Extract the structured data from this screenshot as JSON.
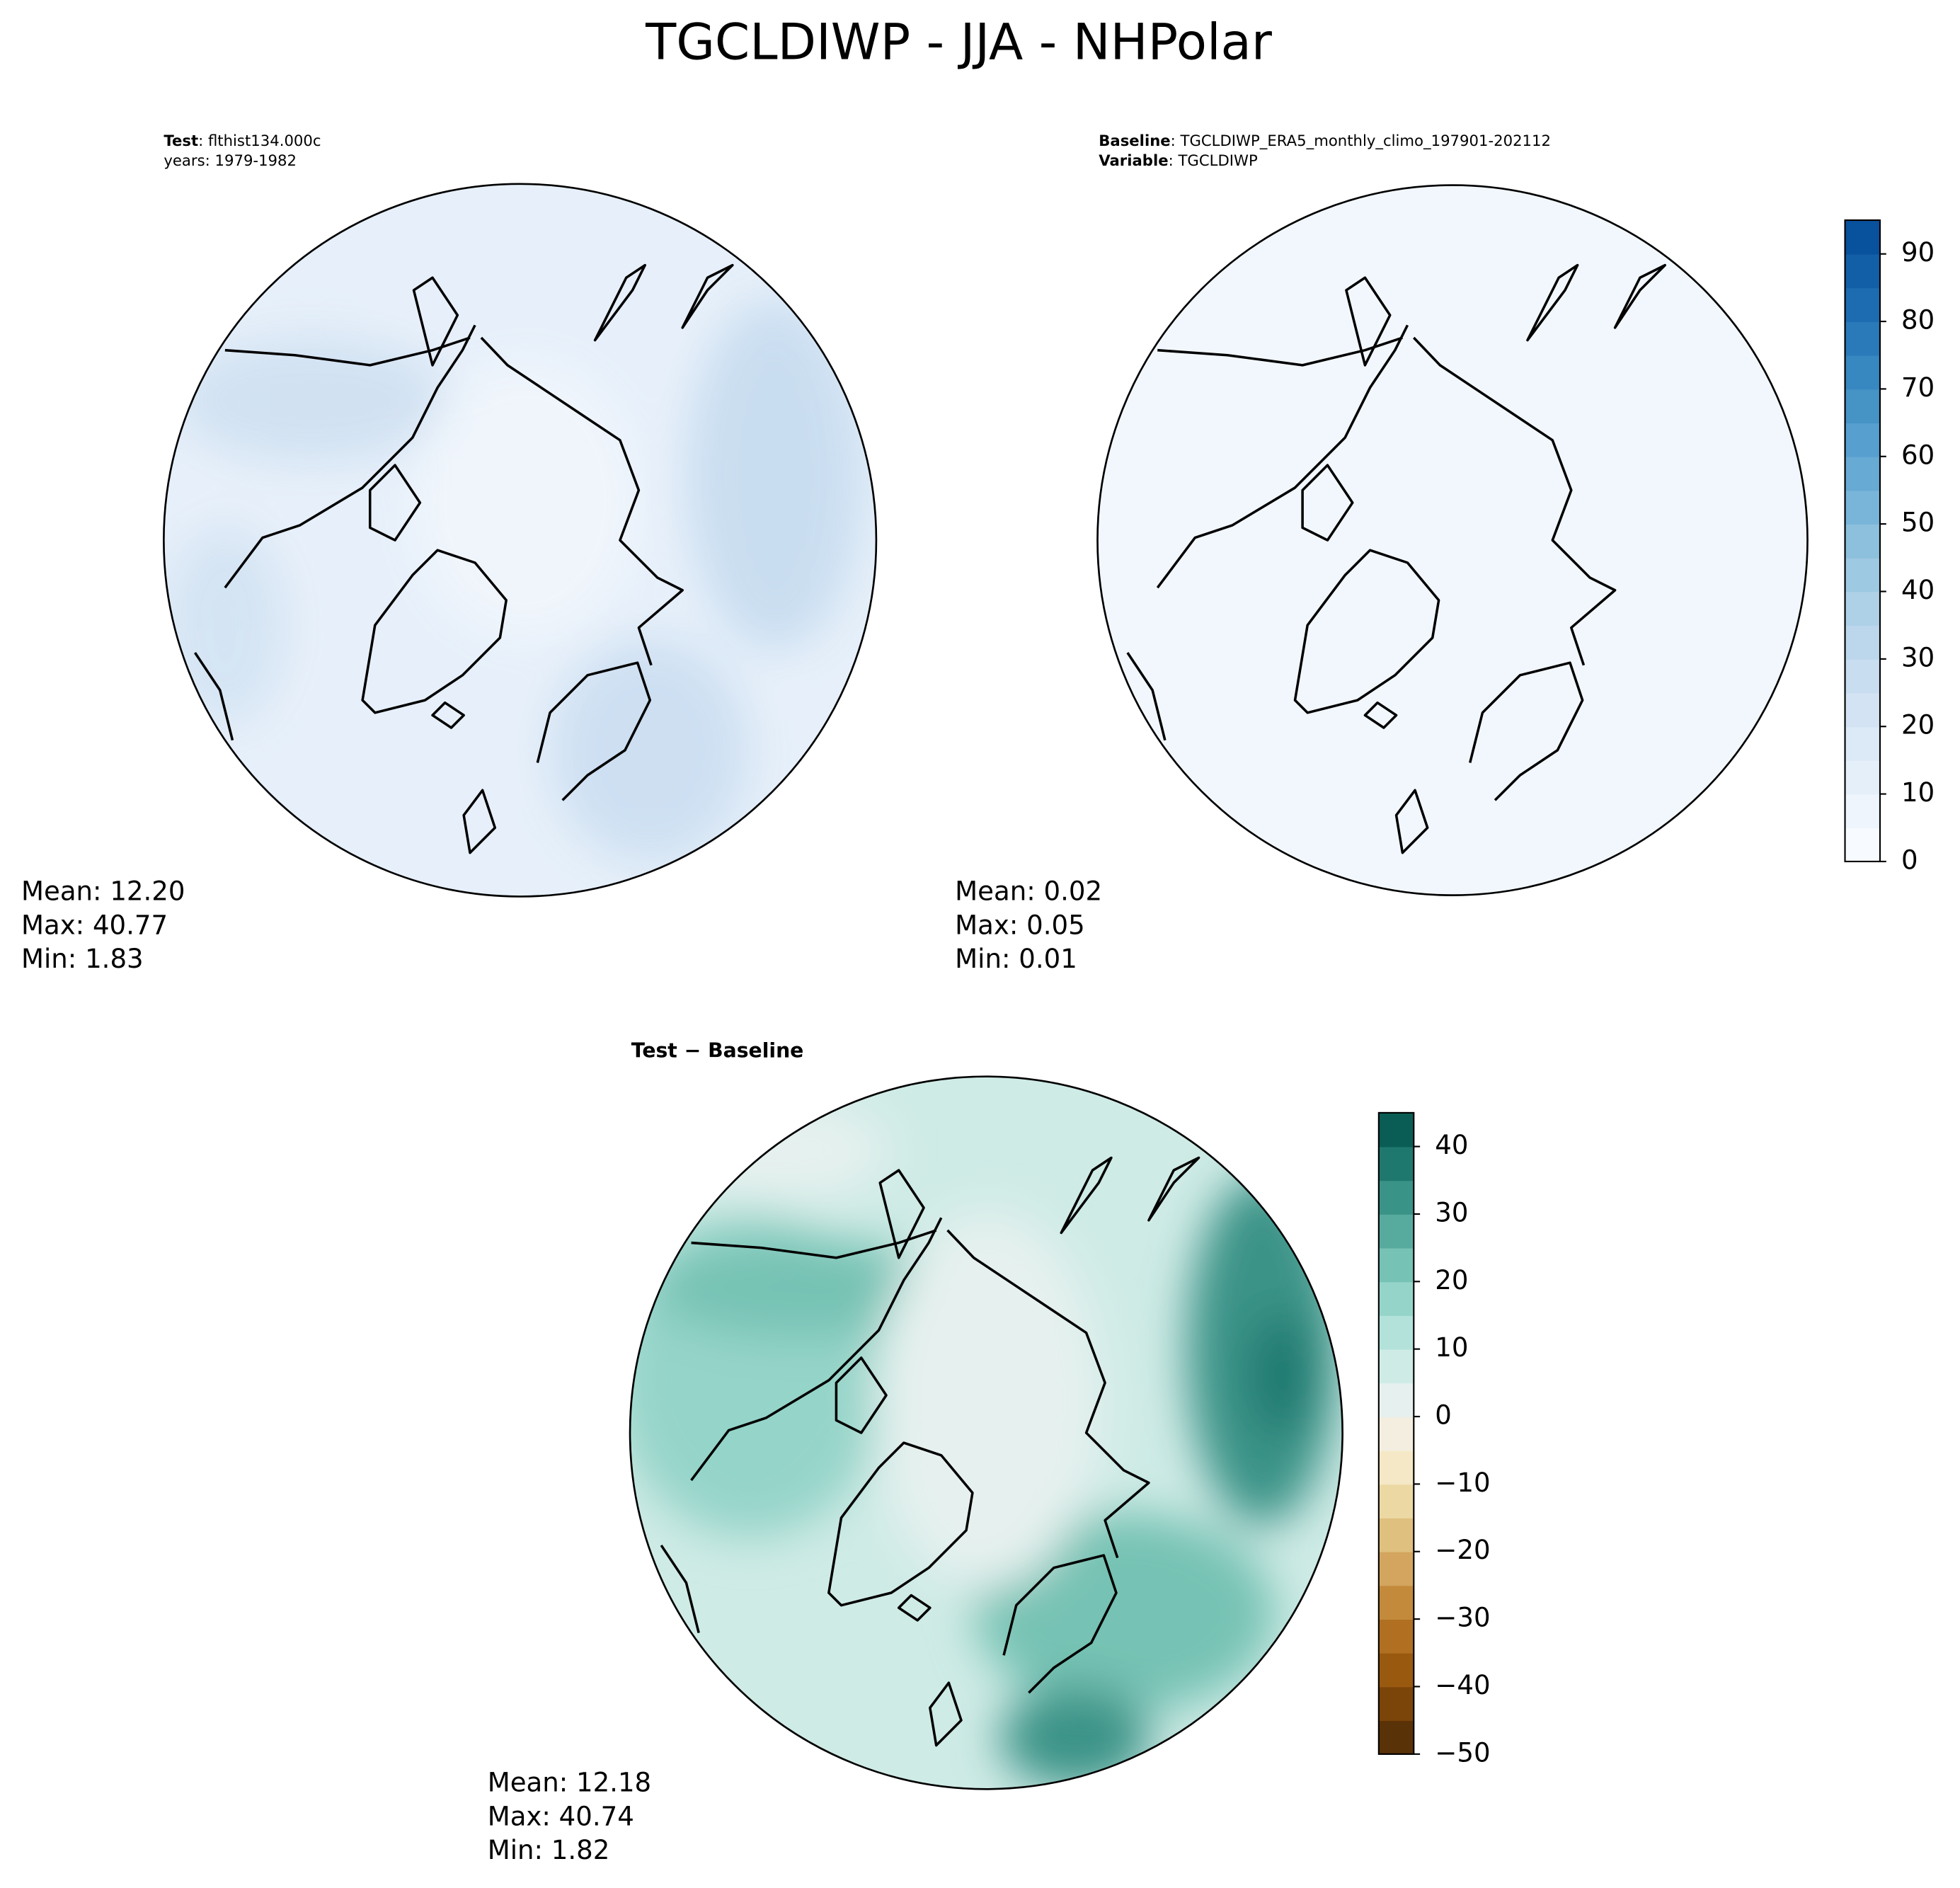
{
  "title": "TGCLDIWP - JJA - NHPolar",
  "panels": [
    {
      "lines": [
        {
          "key": "Test",
          "text": ": flthist134.000c"
        },
        {
          "text": "years: 1979-1982"
        }
      ],
      "stats": [
        "Mean: 12.20",
        "Max: 40.77",
        "Min:  1.83"
      ]
    },
    {
      "lines": [
        {
          "key": "Baseline",
          "text": ": TGCLDIWP_ERA5_monthly_climo_197901-202112"
        },
        {
          "key": "Variable",
          "text": ": TGCLDIWP"
        }
      ],
      "stats": [
        "Mean:  0.02",
        "Max:  0.05",
        "Min:  0.01"
      ]
    },
    {
      "heading": "Test − Baseline",
      "stats": [
        "Mean: 12.18",
        "Max: 40.74",
        "Min:  1.82"
      ]
    }
  ],
  "colorbars": [
    {
      "lim": [
        0,
        95
      ],
      "ticks": [
        0,
        10,
        20,
        30,
        40,
        50,
        60,
        70,
        80,
        90
      ],
      "colors": [
        "#f7fbff",
        "#eef5fc",
        "#e5eff9",
        "#dce9f6",
        "#d3e3f3",
        "#c9ddf0",
        "#bcd7eb",
        "#afd1e7",
        "#9ec9e2",
        "#8cc0dd",
        "#79b5d9",
        "#67aad4",
        "#569fcf",
        "#4693c6",
        "#3787c0",
        "#2a7ab9",
        "#1d6cb1",
        "#135fa7",
        "#08519c"
      ]
    },
    {
      "lim": [
        -50,
        45
      ],
      "ticks": [
        {
          "value": -50,
          "label": "−50"
        },
        {
          "value": -40,
          "label": "−40"
        },
        {
          "value": -30,
          "label": "−30"
        },
        {
          "value": -20,
          "label": "−20"
        },
        {
          "value": -10,
          "label": "−10"
        },
        0,
        10,
        20,
        30,
        40
      ],
      "colors": [
        "#5a3208",
        "#7b4409",
        "#995a10",
        "#b06f21",
        "#c38a3c",
        "#d3a55e",
        "#e0c07f",
        "#ecd8a2",
        "#f4e8c6",
        "#f3eee0",
        "#e6f1ef",
        "#cfebe6",
        "#b3e2da",
        "#95d4c9",
        "#76c2b4",
        "#57ab9e",
        "#3a9387",
        "#1f786e",
        "#0a5d55"
      ]
    }
  ]
}
